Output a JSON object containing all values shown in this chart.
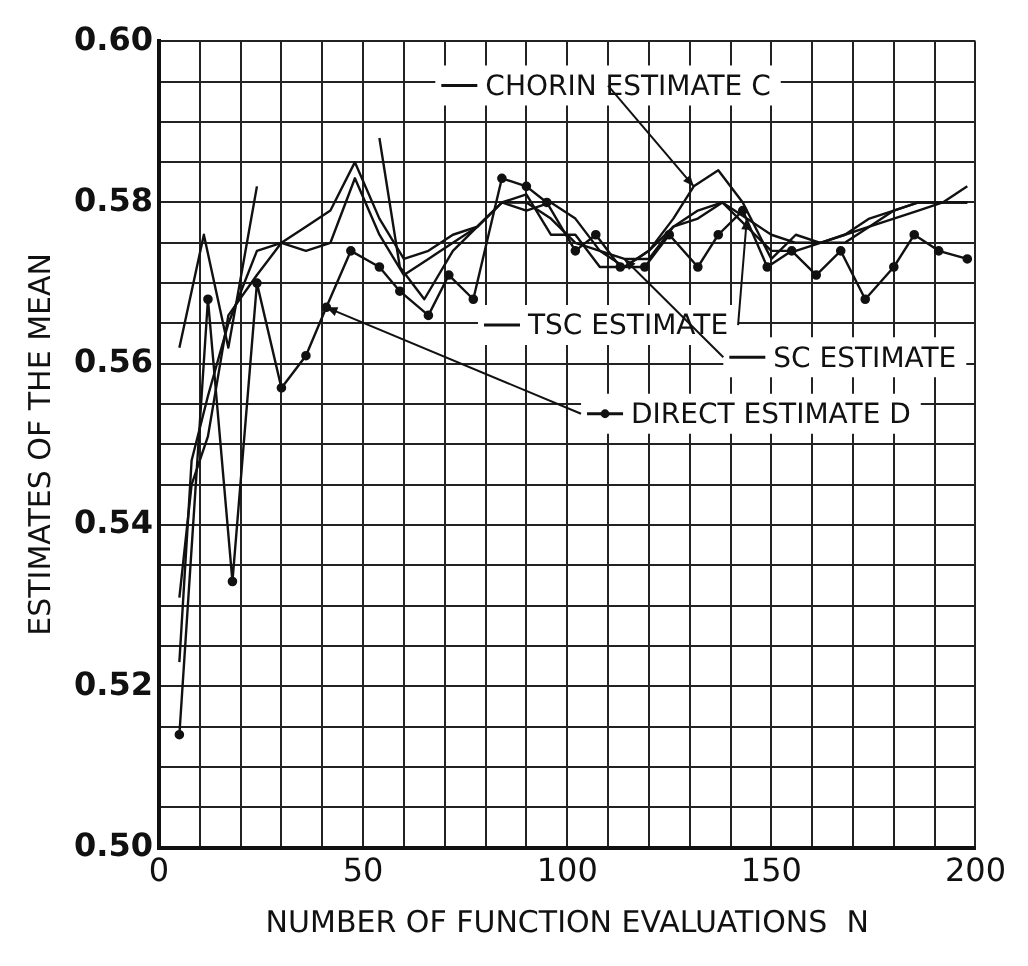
{
  "chart_data": {
    "type": "line",
    "xlabel": "NUMBER OF FUNCTION EVALUATIONS  N",
    "ylabel": "ESTIMATES OF THE MEAN",
    "xlim": [
      0,
      200
    ],
    "xticks": [
      0,
      {
        "value": 10,
        "label": null
      },
      {
        "value": 20,
        "label": null
      },
      {
        "value": 30,
        "label": null
      },
      {
        "value": 40,
        "label": null
      },
      50,
      {
        "value": 60,
        "label": null
      },
      {
        "value": 70,
        "label": null
      },
      {
        "value": 80,
        "label": null
      },
      {
        "value": 90,
        "label": null
      },
      100,
      {
        "value": 110,
        "label": null
      },
      {
        "value": 120,
        "label": null
      },
      {
        "value": 130,
        "label": null
      },
      {
        "value": 140,
        "label": null
      },
      150,
      {
        "value": 160,
        "label": null
      },
      {
        "value": 170,
        "label": null
      },
      {
        "value": 180,
        "label": null
      },
      {
        "value": 190,
        "label": null
      },
      200
    ],
    "ylim": [
      0.5,
      0.6
    ],
    "yticks": [
      {
        "value": 0.5,
        "label": "0.50"
      },
      {
        "value": 0.505,
        "label": null
      },
      {
        "value": 0.51,
        "label": null
      },
      {
        "value": 0.515,
        "label": null
      },
      {
        "value": 0.52,
        "label": "0.52"
      },
      {
        "value": 0.525,
        "label": null
      },
      {
        "value": 0.53,
        "label": null
      },
      {
        "value": 0.535,
        "label": null
      },
      {
        "value": 0.54,
        "label": "0.54"
      },
      {
        "value": 0.545,
        "label": null
      },
      {
        "value": 0.55,
        "label": null
      },
      {
        "value": 0.555,
        "label": null
      },
      {
        "value": 0.56,
        "label": "0.56"
      },
      {
        "value": 0.565,
        "label": null
      },
      {
        "value": 0.57,
        "label": null
      },
      {
        "value": 0.575,
        "label": null
      },
      {
        "value": 0.58,
        "label": "0.58"
      },
      {
        "value": 0.585,
        "label": null
      },
      {
        "value": 0.59,
        "label": null
      },
      {
        "value": 0.595,
        "label": null
      },
      {
        "value": 0.6,
        "label": "0.60"
      }
    ],
    "grid": true,
    "legend": "top right",
    "series": [
      {
        "name": "CHORIN ESTIMATE C",
        "color": "#111111",
        "marker": "none",
        "x": [
          5,
          11,
          17,
          24,
          30,
          54,
          59,
          65,
          72,
          78,
          84,
          90,
          96,
          102,
          108,
          114,
          120,
          126,
          131,
          137,
          143,
          150,
          156,
          162,
          168,
          174,
          180,
          186,
          192,
          198
        ],
        "values": [
          0.562,
          0.576,
          0.562,
          0.582,
          null,
          0.588,
          0.572,
          0.568,
          0.574,
          0.577,
          0.58,
          0.581,
          0.576,
          0.576,
          0.572,
          0.572,
          0.574,
          0.578,
          0.582,
          0.584,
          0.58,
          0.573,
          0.576,
          0.575,
          0.576,
          0.577,
          0.579,
          0.58,
          0.58,
          0.58
        ]
      },
      {
        "name": "TSC ESTIMATE",
        "color": "#111111",
        "marker": "none",
        "x": [
          5,
          8,
          12,
          17,
          24,
          30,
          36,
          42,
          48,
          54,
          60,
          66,
          72,
          78,
          84,
          90,
          96,
          102,
          108,
          114,
          120,
          126,
          132,
          138,
          144,
          150,
          156,
          162,
          168,
          174,
          180,
          186,
          192,
          198
        ],
        "values": [
          0.523,
          0.548,
          0.556,
          0.565,
          0.574,
          0.575,
          0.574,
          0.575,
          0.583,
          0.576,
          0.571,
          0.573,
          0.575,
          0.577,
          0.58,
          0.58,
          0.578,
          0.575,
          0.574,
          0.572,
          0.574,
          0.577,
          0.579,
          0.58,
          0.578,
          0.576,
          0.575,
          0.575,
          0.575,
          0.577,
          0.578,
          0.579,
          0.58,
          0.58
        ]
      },
      {
        "name": "SC ESTIMATE",
        "color": "#111111",
        "marker": "none",
        "x": [
          5,
          8,
          12,
          17,
          24,
          30,
          36,
          42,
          48,
          54,
          60,
          66,
          72,
          78,
          84,
          90,
          96,
          102,
          108,
          114,
          120,
          126,
          132,
          138,
          144,
          150,
          156,
          162,
          168,
          174,
          180,
          186,
          192,
          198
        ],
        "values": [
          0.531,
          0.545,
          0.551,
          0.566,
          0.571,
          0.575,
          0.577,
          0.579,
          0.585,
          0.578,
          0.573,
          0.574,
          0.576,
          0.577,
          0.58,
          0.579,
          0.58,
          0.578,
          0.574,
          0.573,
          0.573,
          0.577,
          0.578,
          0.58,
          0.577,
          0.574,
          0.574,
          0.575,
          0.576,
          0.578,
          0.579,
          0.58,
          0.58,
          0.582
        ]
      },
      {
        "name": "DIRECT ESTIMATE D",
        "color": "#111111",
        "marker": "circle",
        "x": [
          5,
          12,
          18,
          24,
          30,
          36,
          41,
          47,
          54,
          59,
          66,
          71,
          77,
          84,
          90,
          95,
          102,
          107,
          113,
          119,
          125,
          132,
          137,
          143,
          149,
          155,
          161,
          167,
          173,
          180,
          185,
          191,
          198
        ],
        "values": [
          0.514,
          0.568,
          0.533,
          0.57,
          0.557,
          0.561,
          0.567,
          0.574,
          0.572,
          0.569,
          0.566,
          0.571,
          0.568,
          0.583,
          0.582,
          0.58,
          0.574,
          0.576,
          0.572,
          0.572,
          0.576,
          0.572,
          0.576,
          0.579,
          0.572,
          0.574,
          0.571,
          0.574,
          0.568,
          0.572,
          0.576,
          0.574,
          0.573
        ]
      }
    ]
  }
}
